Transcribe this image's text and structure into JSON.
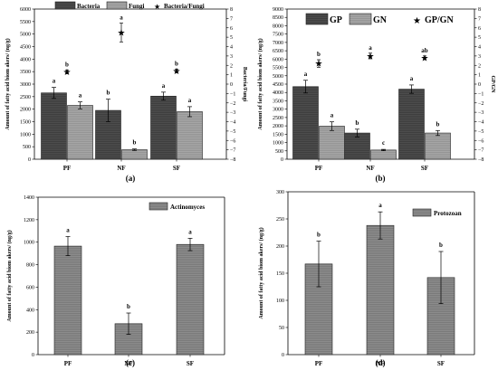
{
  "colors": {
    "dark": "#4d4d4d",
    "light": "#a6a6a6",
    "mid": "#8c8c8c"
  },
  "chart_data": [
    {
      "panel": "(a)",
      "type": "bar",
      "categories": [
        "PF",
        "NF",
        "SF"
      ],
      "ylabel": "Amount of fatty acid biom akers/ (ng/g)",
      "y2label": "Bacteria/Fungi",
      "ylim": [
        0,
        6000
      ],
      "yticks": [
        0,
        500,
        1000,
        1500,
        2000,
        2500,
        3000,
        3500,
        4000,
        4500,
        5000,
        5500,
        6000
      ],
      "y2lim": [
        -8,
        8
      ],
      "y2ticks": [
        -8,
        -7,
        -6,
        -5,
        -4,
        -3,
        -2,
        -1,
        0,
        1,
        2,
        3,
        4,
        5,
        6,
        7,
        8
      ],
      "series": [
        {
          "name": "Bacteria",
          "values": [
            2650,
            1950,
            2520
          ],
          "errors": [
            220,
            450,
            160
          ],
          "letters": [
            "a",
            "b",
            "a"
          ]
        },
        {
          "name": "Fungi",
          "values": [
            2150,
            380,
            1900
          ],
          "errors": [
            140,
            30,
            200
          ],
          "letters": [
            "a",
            "b",
            "a"
          ]
        }
      ],
      "ratio": {
        "name": "Bacteria/Fungi",
        "values": [
          1.3,
          5.5,
          1.4
        ],
        "errors": [
          0.2,
          1.0,
          0.2
        ],
        "letters": [
          "b",
          "a",
          "b"
        ]
      },
      "legend": "top"
    },
    {
      "panel": "(b)",
      "type": "bar",
      "categories": [
        "PF",
        "NF",
        "SF"
      ],
      "ylabel": "Amount of fatty acid biom akers/ (ng/g)",
      "y2label": "GP/GN",
      "ylim": [
        0,
        9000
      ],
      "yticks": [
        0,
        500,
        1000,
        1500,
        2000,
        2500,
        3000,
        3500,
        4000,
        4500,
        5000,
        5500,
        6000,
        6500,
        7000,
        7500,
        8000,
        8500,
        9000
      ],
      "y2lim": [
        -8,
        8
      ],
      "y2ticks": [
        -8,
        -7,
        -6,
        -5,
        -4,
        -3,
        -2,
        -1,
        0,
        1,
        2,
        3,
        4,
        5,
        6,
        7,
        8
      ],
      "series": [
        {
          "name": "GP",
          "values": [
            4350,
            1570,
            4200
          ],
          "errors": [
            380,
            230,
            250
          ],
          "letters": [
            "a",
            "b",
            "a"
          ]
        },
        {
          "name": "GN",
          "values": [
            1980,
            550,
            1570
          ],
          "errors": [
            260,
            40,
            150
          ],
          "letters": [
            "a",
            "c",
            "b"
          ]
        }
      ],
      "ratio": {
        "name": "GP/GN",
        "values": [
          2.2,
          3.0,
          2.8
        ],
        "errors": [
          0.4,
          0.3,
          0.2
        ],
        "letters": [
          "b",
          "a",
          "ab"
        ]
      },
      "legend": "top"
    },
    {
      "panel": "(c)",
      "type": "bar",
      "categories": [
        "PF",
        "NF",
        "SF"
      ],
      "ylabel": "Amount of fatty acid biom akers/ (ng/g)",
      "ylim": [
        0,
        1400
      ],
      "yticks": [
        0,
        200,
        400,
        600,
        800,
        1000,
        1200,
        1400
      ],
      "series": [
        {
          "name": "Actinomyces",
          "values": [
            965,
            275,
            980
          ],
          "errors": [
            85,
            95,
            55
          ],
          "letters": [
            "a",
            "b",
            "a"
          ]
        }
      ],
      "legend": "top-right"
    },
    {
      "panel": "(d)",
      "type": "bar",
      "categories": [
        "PF",
        "NF",
        "SF"
      ],
      "ylabel": "Amount of fatty acid biom akers/ (ng/g)",
      "ylim": [
        0,
        300
      ],
      "yticks": [
        0,
        50,
        100,
        150,
        200,
        250,
        300
      ],
      "series": [
        {
          "name": "Protozoan",
          "values": [
            167,
            238,
            142
          ],
          "errors": [
            42,
            25,
            48
          ],
          "letters": [
            "b",
            "a",
            "b"
          ]
        }
      ],
      "legend": "top-right"
    }
  ]
}
